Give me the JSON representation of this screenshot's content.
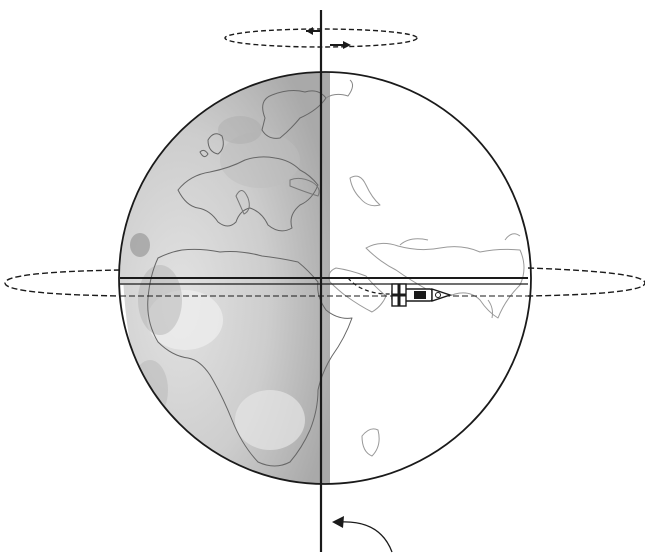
{
  "figure": {
    "colors": {
      "background": "#ffffff",
      "ink": "#1a1a1a",
      "coastline_day": "#666666",
      "coastline_night": "#9a9a9a",
      "shaded_half": "#c6c6c6",
      "shaded_dark": "#9c9c9c",
      "shaded_light": "#dedede"
    },
    "elements": {
      "globe": "earth-globe",
      "shaded_hemisphere": "left-half-gray",
      "axis": "rotation-axis",
      "equator": "equator-line",
      "rocket": "rocket-icon"
    }
  }
}
